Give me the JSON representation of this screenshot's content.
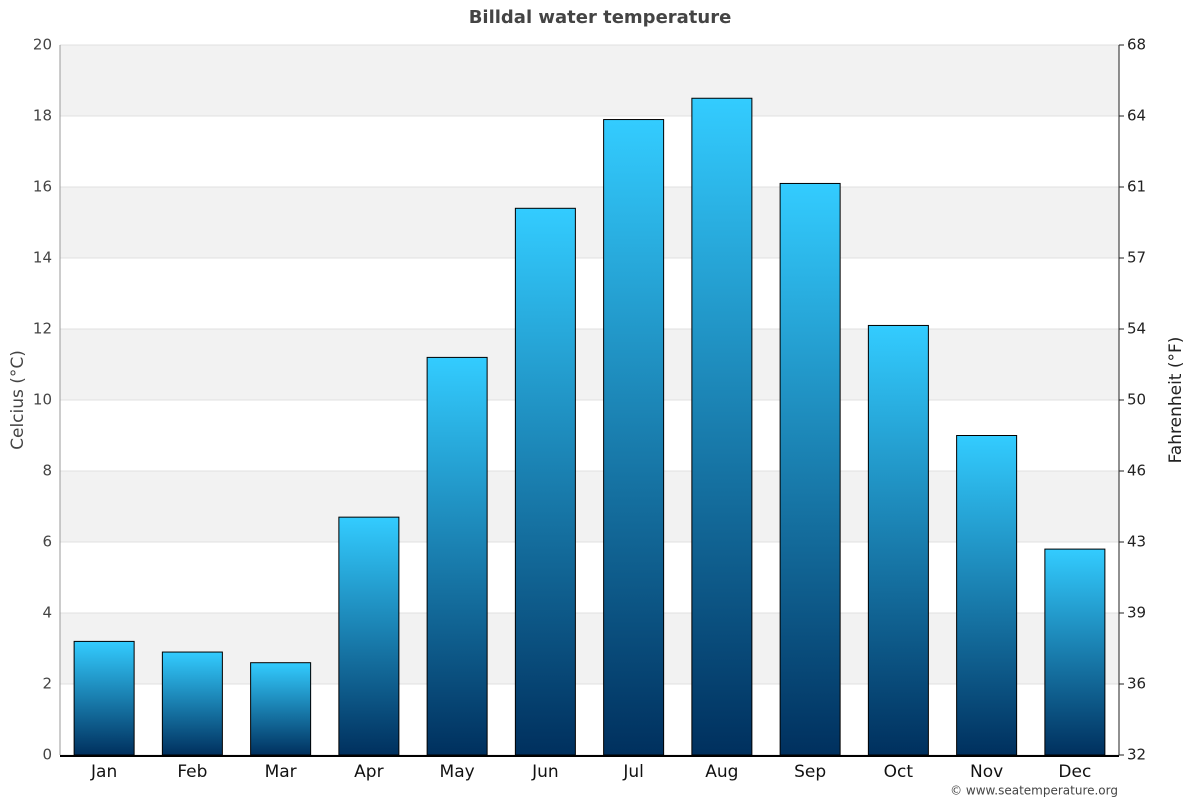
{
  "chart_data": {
    "type": "bar",
    "title": "Billdal water temperature",
    "categories": [
      "Jan",
      "Feb",
      "Mar",
      "Apr",
      "May",
      "Jun",
      "Jul",
      "Aug",
      "Sep",
      "Oct",
      "Nov",
      "Dec"
    ],
    "values": [
      3.2,
      2.9,
      2.6,
      6.7,
      11.2,
      15.4,
      17.9,
      18.5,
      16.1,
      12.1,
      9.0,
      5.8
    ],
    "gradient": [
      "#33ccff",
      "#00305e"
    ],
    "ylabel": "Celcius (°C)",
    "y2label": "Fahrenheit (°F)",
    "ylim": [
      0,
      20
    ],
    "yticks": [
      0,
      2,
      4,
      6,
      8,
      10,
      12,
      14,
      16,
      18,
      20
    ],
    "y2lim": [
      32,
      68
    ],
    "y2ticks": [
      32,
      {
        "value": 35.6,
        "label": "36"
      },
      {
        "value": 39.2,
        "label": "39"
      },
      {
        "value": 42.8,
        "label": "43"
      },
      {
        "value": 46.4,
        "label": "46"
      },
      50,
      {
        "value": 53.6,
        "label": "54"
      },
      {
        "value": 57.2,
        "label": "57"
      },
      {
        "value": 60.8,
        "label": "61"
      },
      {
        "value": 64.4,
        "label": "64"
      },
      68
    ],
    "grid": true,
    "band_color": "#f2f2f2",
    "credit": "© www.seatemperature.org"
  }
}
